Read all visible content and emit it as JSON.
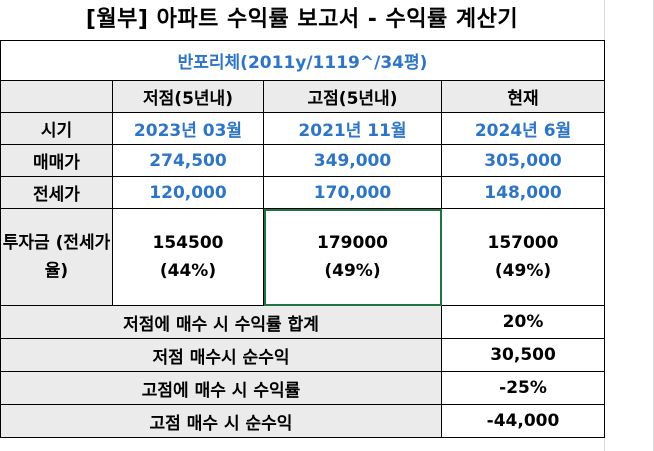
{
  "title": "[월부] 아파트 수익률 보고서 - 수익률 계산기",
  "subtitle": "반포리체(2011y/1119^/34평)",
  "headers": [
    "저점(5년내)",
    "고점(5년내)",
    "현재"
  ],
  "rows": {
    "period": {
      "label": "시기",
      "values": [
        "2023년 03월",
        "2021년 11월",
        "2024년 6월"
      ]
    },
    "sale_price": {
      "label": "매매가",
      "values": [
        "274,500",
        "349,000",
        "305,000"
      ]
    },
    "jeonse_price": {
      "label": "전세가",
      "values": [
        "120,000",
        "170,000",
        "148,000"
      ]
    },
    "investment": {
      "label": "투자금\n(전세가\n율)",
      "amounts": [
        "154500",
        "179000",
        "157000"
      ],
      "ratios": [
        "(44%)",
        "(49%)",
        "(49%)"
      ]
    }
  },
  "summary": [
    {
      "label": "저점에 매수 시 수익률 합계",
      "value": "20%"
    },
    {
      "label": "저점 매수시 순수익",
      "value": "30,500"
    },
    {
      "label": "고점에 매수 시 수익률",
      "value": "-25%"
    },
    {
      "label": "고점 매수 시 순수익",
      "value": "-44,000"
    }
  ]
}
